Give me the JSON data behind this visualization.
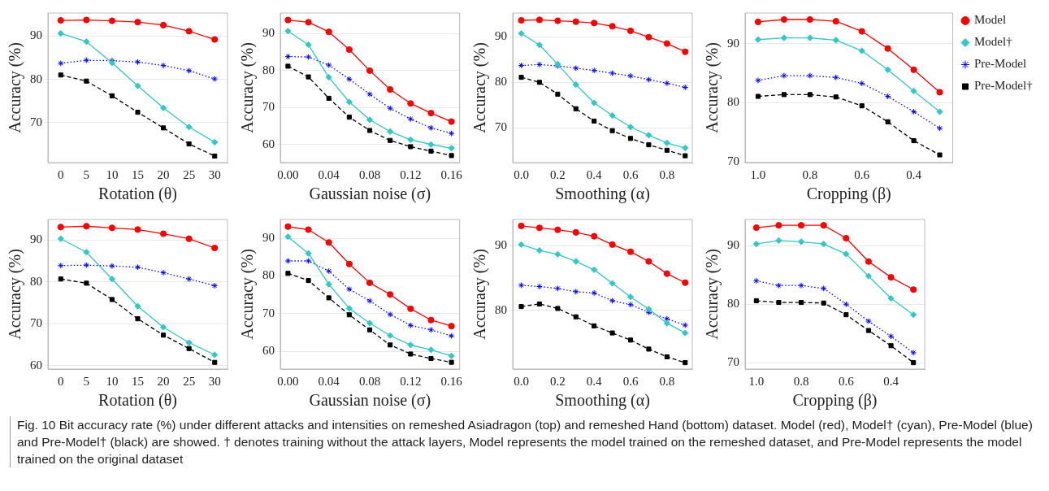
{
  "chart_data": [
    {
      "type": "line",
      "xlabel": "Rotation (θ)",
      "ylabel": "Accuracy (%)",
      "x": [
        0,
        5,
        10,
        15,
        20,
        25,
        30
      ],
      "xlim": [
        -2.5,
        32.5
      ],
      "xticks": [
        0,
        5,
        10,
        15,
        20,
        25,
        30
      ],
      "ylim": [
        60.8,
        95.3
      ],
      "yticks": [
        70,
        80,
        90
      ],
      "grid": "y",
      "series": [
        {
          "color": "#ff0000",
          "marker": "circle",
          "line_style": "solid",
          "values": [
            93.6,
            93.7,
            93.5,
            93.2,
            92.5,
            91.1,
            89.2
          ]
        },
        {
          "color": "#30c8c8",
          "marker": "diamond",
          "line_style": "solid",
          "values": [
            90.6,
            88.7,
            83.8,
            78.5,
            73.4,
            69.0,
            65.5
          ]
        },
        {
          "color": "#0000ff",
          "marker": "cross",
          "line_style": "dotted",
          "values": [
            83.7,
            84.4,
            84.3,
            84.0,
            83.2,
            82.0,
            80.1
          ]
        },
        {
          "color": "#000000",
          "marker": "square",
          "line_style": "dashed",
          "values": [
            81.0,
            79.6,
            76.2,
            72.4,
            68.8,
            65.1,
            62.3
          ]
        }
      ]
    },
    {
      "type": "line",
      "xlabel": "Gaussian noise (σ)",
      "ylabel": "Accuracy (%)",
      "x": [
        0,
        0.02,
        0.04,
        0.06,
        0.08,
        0.1,
        0.12,
        0.14,
        0.16
      ],
      "xlim": [
        -0.0075,
        0.168
      ],
      "xticks": [
        {
          "value": 0,
          "label": "0.00"
        },
        {
          "value": 0.04,
          "label": "0.04"
        },
        {
          "value": 0.08,
          "label": "0.08"
        },
        {
          "value": 0.12,
          "label": "0.12"
        },
        {
          "value": 0.16,
          "label": "0.16"
        }
      ],
      "ylim": [
        55.1,
        95.6
      ],
      "yticks": [
        60,
        70,
        80,
        90
      ],
      "grid": "y",
      "series": [
        {
          "color": "#ff0000",
          "marker": "circle",
          "line_style": "solid",
          "values": [
            93.7,
            93.1,
            90.5,
            85.7,
            80.0,
            74.9,
            71.1,
            68.5,
            66.2
          ]
        },
        {
          "color": "#30c8c8",
          "marker": "diamond",
          "line_style": "solid",
          "values": [
            90.7,
            87.0,
            78.2,
            71.5,
            66.7,
            63.5,
            61.3,
            60.0,
            59.0
          ]
        },
        {
          "color": "#0000ff",
          "marker": "cross",
          "line_style": "dotted",
          "values": [
            83.8,
            83.7,
            81.5,
            77.7,
            73.6,
            69.8,
            66.9,
            64.5,
            63.0
          ]
        },
        {
          "color": "#000000",
          "marker": "square",
          "line_style": "dashed",
          "values": [
            81.2,
            78.3,
            72.5,
            67.4,
            63.8,
            61.1,
            59.4,
            58.2,
            57.0
          ]
        }
      ]
    },
    {
      "type": "line",
      "xlabel": "Smoothing (α)",
      "ylabel": "Accuracy (%)",
      "x": [
        0,
        0.1,
        0.2,
        0.3,
        0.4,
        0.5,
        0.6,
        0.7,
        0.8,
        0.9
      ],
      "xlim": [
        -0.047,
        0.939
      ],
      "xticks": [
        {
          "value": 0,
          "label": "0.0"
        },
        0.2,
        0.4,
        0.6,
        0.8
      ],
      "ylim": [
        62.4,
        95.2
      ],
      "yticks": [
        70,
        80,
        90
      ],
      "grid": "y",
      "series": [
        {
          "color": "#ff0000",
          "marker": "circle",
          "line_style": "solid",
          "values": [
            93.6,
            93.7,
            93.5,
            93.3,
            93.0,
            92.3,
            91.3,
            89.9,
            88.5,
            86.7
          ]
        },
        {
          "color": "#30c8c8",
          "marker": "diamond",
          "line_style": "solid",
          "values": [
            90.7,
            88.2,
            84.0,
            79.5,
            75.5,
            72.7,
            70.2,
            68.4,
            66.7,
            65.6
          ]
        },
        {
          "color": "#0000ff",
          "marker": "cross",
          "line_style": "dotted",
          "values": [
            83.7,
            83.9,
            83.6,
            83.1,
            82.6,
            82.0,
            81.4,
            80.6,
            79.8,
            78.9
          ]
        },
        {
          "color": "#000000",
          "marker": "square",
          "line_style": "dashed",
          "values": [
            81.1,
            80.0,
            77.4,
            74.2,
            71.5,
            69.4,
            67.7,
            66.3,
            65.1,
            63.9
          ]
        }
      ]
    },
    {
      "type": "line",
      "xlabel": "Cropping (β)",
      "ylabel": "Accuracy (%)",
      "x": [
        1.0,
        0.9,
        0.8,
        0.7,
        0.6,
        0.5,
        0.4,
        0.3
      ],
      "xlim": [
        1.05,
        0.25
      ],
      "xticks": [
        {
          "value": 1,
          "label": "1.0"
        },
        0.8,
        0.6,
        0.4
      ],
      "ylim": [
        69.9,
        95.2
      ],
      "yticks": [
        70,
        80,
        90
      ],
      "grid": "y",
      "legend": "right",
      "series": [
        {
          "name": "Model",
          "color": "#ff0000",
          "marker": "circle",
          "line_style": "solid",
          "values": [
            93.7,
            94.1,
            94.1,
            93.8,
            92.1,
            89.2,
            85.6,
            81.8
          ]
        },
        {
          "name": "Model†",
          "color": "#30c8c8",
          "marker": "diamond",
          "line_style": "solid",
          "values": [
            90.7,
            91.0,
            91.0,
            90.6,
            88.8,
            85.6,
            82.0,
            78.5
          ]
        },
        {
          "name": "Pre-Model",
          "color": "#0000ff",
          "marker": "cross",
          "line_style": "dotted",
          "values": [
            83.8,
            84.6,
            84.6,
            84.3,
            83.3,
            81.1,
            78.5,
            75.7
          ]
        },
        {
          "name": "Pre-Model†",
          "color": "#000000",
          "marker": "square",
          "line_style": "dashed",
          "values": [
            81.1,
            81.4,
            81.4,
            81.0,
            79.5,
            76.8,
            73.6,
            71.2
          ]
        }
      ]
    },
    {
      "type": "line",
      "xlabel": "Rotation (θ)",
      "ylabel": "Accuracy (%)",
      "x": [
        0,
        5,
        10,
        15,
        20,
        25,
        30
      ],
      "xlim": [
        -2.5,
        32.5
      ],
      "xticks": [
        0,
        5,
        10,
        15,
        20,
        25,
        30
      ],
      "ylim": [
        59.2,
        94.9
      ],
      "yticks": [
        60,
        70,
        80,
        90
      ],
      "grid": "y",
      "series": [
        {
          "color": "#ff0000",
          "marker": "circle",
          "line_style": "solid",
          "values": [
            93.1,
            93.3,
            92.9,
            92.5,
            91.5,
            90.3,
            88.1
          ]
        },
        {
          "color": "#30c8c8",
          "marker": "diamond",
          "line_style": "solid",
          "values": [
            90.3,
            87.1,
            80.7,
            74.2,
            69.2,
            65.5,
            62.6
          ]
        },
        {
          "color": "#0000ff",
          "marker": "cross",
          "line_style": "dotted",
          "values": [
            83.9,
            84.0,
            83.8,
            83.5,
            82.2,
            80.7,
            79.1
          ]
        },
        {
          "color": "#000000",
          "marker": "square",
          "line_style": "dashed",
          "values": [
            80.7,
            79.7,
            75.8,
            71.2,
            67.3,
            64.1,
            60.8
          ]
        }
      ]
    },
    {
      "type": "line",
      "xlabel": "Gaussian noise (σ)",
      "ylabel": "Accuracy (%)",
      "x": [
        0,
        0.02,
        0.04,
        0.06,
        0.08,
        0.1,
        0.12,
        0.14,
        0.16
      ],
      "xlim": [
        -0.0075,
        0.168
      ],
      "xticks": [
        {
          "value": 0,
          "label": "0.00"
        },
        {
          "value": 0.04,
          "label": "0.04"
        },
        {
          "value": 0.08,
          "label": "0.08"
        },
        {
          "value": 0.12,
          "label": "0.12"
        },
        {
          "value": 0.16,
          "label": "0.16"
        }
      ],
      "ylim": [
        55.3,
        95.0
      ],
      "yticks": [
        60,
        70,
        80,
        90
      ],
      "grid": "y",
      "series": [
        {
          "color": "#ff0000",
          "marker": "circle",
          "line_style": "solid",
          "values": [
            93.1,
            92.3,
            88.9,
            83.2,
            78.2,
            75.1,
            71.3,
            68.3,
            66.7
          ]
        },
        {
          "color": "#30c8c8",
          "marker": "diamond",
          "line_style": "solid",
          "values": [
            90.4,
            86.0,
            77.8,
            71.4,
            67.5,
            64.2,
            61.7,
            60.4,
            58.8
          ]
        },
        {
          "color": "#0000ff",
          "marker": "cross",
          "line_style": "dotted",
          "values": [
            84.0,
            84.0,
            81.3,
            76.5,
            73.4,
            69.8,
            66.9,
            65.7,
            64.1
          ]
        },
        {
          "color": "#000000",
          "marker": "square",
          "line_style": "dashed",
          "values": [
            80.7,
            78.8,
            74.2,
            69.7,
            65.7,
            61.7,
            59.3,
            58.1,
            57.1
          ]
        }
      ]
    },
    {
      "type": "line",
      "xlabel": "Smoothing (α)",
      "ylabel": "Accuracy (%)",
      "x": [
        0,
        0.1,
        0.2,
        0.3,
        0.4,
        0.5,
        0.6,
        0.7,
        0.8,
        0.9
      ],
      "xlim": [
        -0.047,
        0.939
      ],
      "xticks": [
        {
          "value": 0,
          "label": "0.0"
        },
        0.2,
        0.4,
        0.6,
        0.8
      ],
      "ylim": [
        70.9,
        94.1
      ],
      "yticks": [
        80,
        90
      ],
      "grid": "y",
      "series": [
        {
          "color": "#ff0000",
          "marker": "circle",
          "line_style": "solid",
          "values": [
            93.1,
            92.8,
            92.5,
            92.1,
            91.5,
            90.2,
            89.1,
            87.6,
            85.7,
            84.3
          ]
        },
        {
          "color": "#30c8c8",
          "marker": "diamond",
          "line_style": "solid",
          "values": [
            90.2,
            89.3,
            88.7,
            87.6,
            86.3,
            84.2,
            82.1,
            80.2,
            78.0,
            76.5
          ]
        },
        {
          "color": "#0000ff",
          "marker": "cross",
          "line_style": "dotted",
          "values": [
            83.9,
            83.7,
            83.4,
            82.9,
            82.7,
            81.5,
            80.9,
            79.7,
            78.7,
            77.7
          ]
        },
        {
          "color": "#000000",
          "marker": "square",
          "line_style": "dashed",
          "values": [
            80.6,
            81.0,
            80.3,
            79.0,
            77.6,
            76.5,
            75.4,
            74.0,
            72.8,
            71.9
          ]
        }
      ]
    },
    {
      "type": "line",
      "xlabel": "Cropping (β)",
      "ylabel": "Accuracy (%)",
      "x": [
        1.0,
        0.9,
        0.8,
        0.7,
        0.6,
        0.5,
        0.4,
        0.3
      ],
      "xlim": [
        1.05,
        0.25
      ],
      "xticks": [
        {
          "value": 1,
          "label": "1.0"
        },
        0.8,
        0.6,
        0.4
      ],
      "ylim": [
        68.9,
        94.5
      ],
      "yticks": [
        70,
        80,
        90
      ],
      "grid": "y",
      "annotations": [
        "Fig. 10  Bit accuracy rate (%) under different attacks and intensities on remeshed Asiadragon (top) and remeshed Hand (bottom) dataset. Model (red), Model† (cyan), Pre-Model (blue) and Pre-Model† (black) are showed. † denotes training without the attack layers, Model represents the model trained on the remeshed dataset, and Pre-Model represents the model trained on the original dataset"
      ],
      "series": [
        {
          "color": "#ff0000",
          "marker": "circle",
          "line_style": "solid",
          "values": [
            93.1,
            93.5,
            93.5,
            93.5,
            91.3,
            87.3,
            84.6,
            82.5
          ]
        },
        {
          "color": "#30c8c8",
          "marker": "diamond",
          "line_style": "solid",
          "values": [
            90.3,
            90.9,
            90.7,
            90.3,
            88.6,
            84.8,
            81.0,
            78.2
          ]
        },
        {
          "color": "#0000ff",
          "marker": "cross",
          "line_style": "dotted",
          "values": [
            84.0,
            83.2,
            83.2,
            82.7,
            80.0,
            77.1,
            74.5,
            71.7
          ]
        },
        {
          "color": "#000000",
          "marker": "square",
          "line_style": "dashed",
          "values": [
            80.6,
            80.3,
            80.3,
            80.2,
            78.2,
            75.5,
            72.9,
            70.0
          ]
        }
      ]
    }
  ]
}
